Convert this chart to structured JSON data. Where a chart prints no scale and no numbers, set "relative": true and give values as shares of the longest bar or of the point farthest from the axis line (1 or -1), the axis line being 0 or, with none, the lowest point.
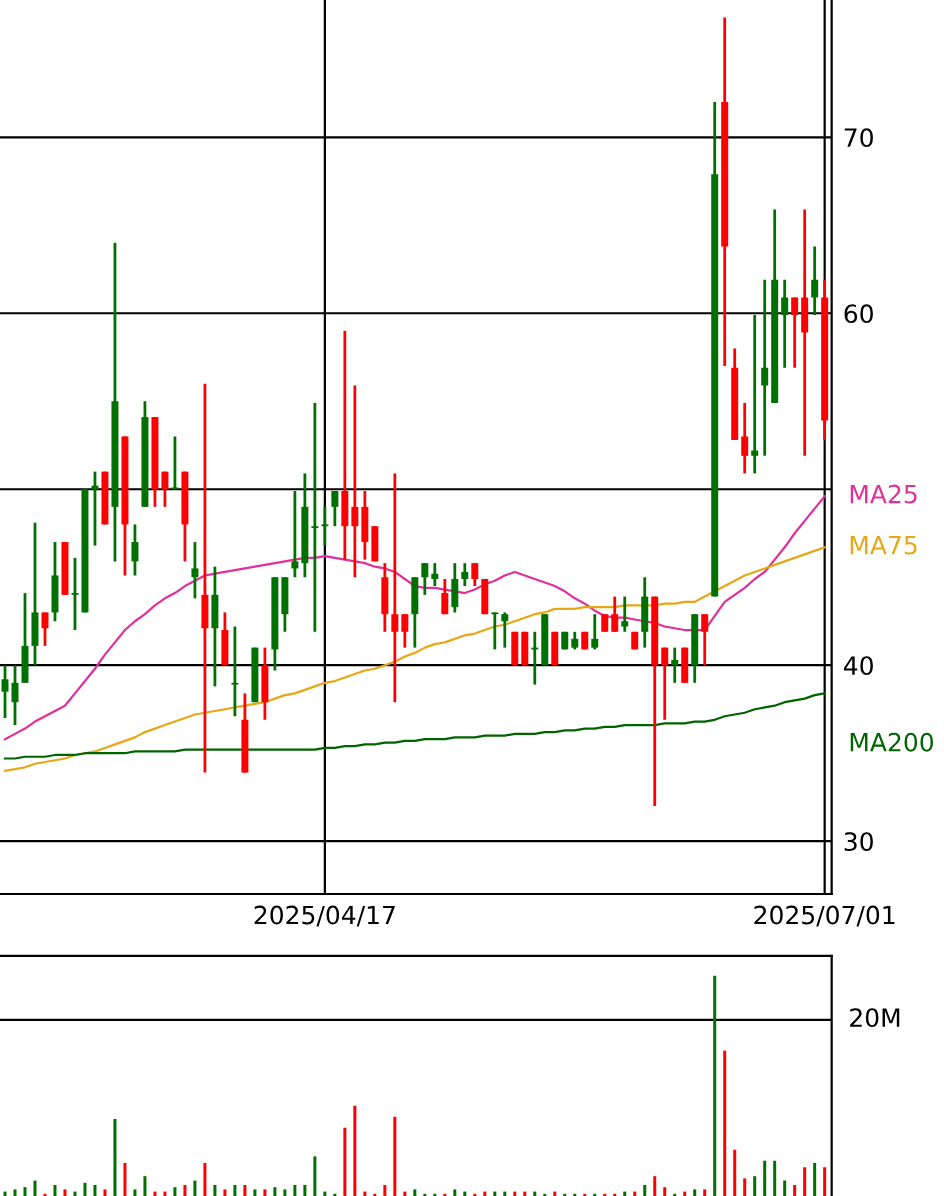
{
  "chart_data": [
    {
      "type": "candlestick",
      "categories": [
        null,
        null,
        null,
        null,
        null,
        null,
        null,
        null,
        null,
        null,
        null,
        null,
        null,
        null,
        null,
        null,
        null,
        null,
        null,
        null,
        null,
        null,
        null,
        null,
        null,
        null,
        null,
        null,
        null,
        null,
        null,
        null,
        "2025/04/17",
        null,
        null,
        null,
        null,
        null,
        null,
        null,
        null,
        null,
        null,
        null,
        null,
        null,
        null,
        null,
        null,
        null,
        null,
        null,
        null,
        null,
        null,
        null,
        null,
        null,
        null,
        null,
        null,
        null,
        null,
        null,
        null,
        null,
        null,
        null,
        null,
        null,
        null,
        null,
        null,
        null,
        null,
        null,
        null,
        null,
        null,
        null,
        null,
        null,
        "2025/07/01"
      ],
      "ohlc": [
        [
          38.5,
          40,
          37,
          39.2
        ],
        [
          37.9,
          40,
          36.6,
          39.0
        ],
        [
          39.0,
          44.1,
          39.0,
          41.1
        ],
        [
          41.1,
          48.1,
          40.0,
          43.0
        ],
        [
          43.0,
          43.0,
          41.1,
          42.1
        ],
        [
          43.0,
          47.0,
          42.5,
          45.1
        ],
        [
          47.0,
          47.0,
          44.0,
          44.0
        ],
        [
          44.0,
          46.1,
          42.0,
          44.1
        ],
        [
          43.0,
          50.0,
          43.0,
          50.0
        ],
        [
          50.0,
          51.0,
          46.8,
          50.2
        ],
        [
          51.0,
          51.0,
          48.0,
          48.0
        ],
        [
          49.0,
          64.0,
          45.9,
          55.0
        ],
        [
          53.0,
          53.0,
          45.1,
          48.0
        ],
        [
          45.9,
          48.0,
          45.1,
          47.0
        ],
        [
          49.0,
          55.0,
          49.0,
          54.1
        ],
        [
          54.1,
          54.1,
          49.0,
          50.0
        ],
        [
          51.0,
          51.0,
          49.0,
          50.0
        ],
        [
          50.0,
          53.0,
          50.0,
          50.1
        ],
        [
          51.0,
          51.0,
          45.9,
          48.0
        ],
        [
          45.0,
          47.0,
          43.8,
          45.5
        ],
        [
          44.0,
          56.0,
          33.9,
          42.1
        ],
        [
          42.1,
          45.6,
          38.8,
          44.0
        ],
        [
          42.0,
          43.0,
          40.0,
          40.0
        ],
        [
          38.9,
          42.2,
          37.1,
          39.0
        ],
        [
          36.9,
          38.4,
          33.9,
          33.9
        ],
        [
          37.9,
          41.0,
          37.9,
          41.0
        ],
        [
          40.0,
          41.0,
          36.9,
          37.9
        ],
        [
          40.9,
          45.0,
          39.7,
          45.0
        ],
        [
          42.9,
          45.0,
          41.9,
          45.0
        ],
        [
          45.5,
          49.9,
          45.0,
          45.9
        ],
        [
          45.8,
          50.9,
          45.0,
          49.0
        ],
        [
          47.8,
          54.9,
          41.9,
          47.9
        ],
        [
          47.9,
          49.0,
          46.8,
          48.0
        ],
        [
          49.0,
          49.9,
          47.9,
          49.9
        ],
        [
          49.9,
          59.0,
          46.0,
          47.9
        ],
        [
          49.0,
          55.9,
          45.0,
          47.9
        ],
        [
          49.0,
          49.9,
          46.0,
          47.0
        ],
        [
          47.9,
          47.9,
          45.9,
          45.9
        ],
        [
          45.0,
          45.8,
          41.9,
          42.9
        ],
        [
          42.9,
          50.9,
          37.9,
          41.9
        ],
        [
          42.9,
          42.9,
          41.0,
          41.9
        ],
        [
          42.9,
          45.0,
          41.0,
          45.0
        ],
        [
          45.0,
          45.8,
          44.0,
          45.8
        ],
        [
          44.9,
          45.8,
          44.5,
          45.2
        ],
        [
          44.1,
          44.9,
          42.9,
          42.9
        ],
        [
          43.3,
          45.8,
          43.0,
          44.9
        ],
        [
          44.9,
          45.8,
          44.5,
          45.3
        ],
        [
          45.8,
          45.8,
          44.5,
          44.9
        ],
        [
          44.9,
          44.9,
          42.9,
          42.9
        ],
        [
          42.9,
          43.0,
          40.9,
          43.0
        ],
        [
          42.5,
          43.0,
          41.0,
          42.9
        ],
        [
          41.9,
          41.9,
          40.0,
          40.0
        ],
        [
          41.9,
          41.9,
          40.0,
          40.0
        ],
        [
          40.9,
          41.9,
          38.9,
          41.0
        ],
        [
          40.0,
          42.9,
          40.0,
          42.9
        ],
        [
          41.9,
          41.9,
          40.0,
          40.0
        ],
        [
          40.9,
          41.9,
          40.9,
          41.9
        ],
        [
          41.0,
          41.9,
          40.9,
          41.5
        ],
        [
          41.9,
          41.9,
          40.9,
          40.9
        ],
        [
          41.0,
          42.9,
          40.9,
          41.5
        ],
        [
          42.9,
          42.9,
          41.9,
          41.9
        ],
        [
          42.9,
          43.9,
          41.9,
          41.9
        ],
        [
          42.2,
          43.9,
          41.9,
          42.5
        ],
        [
          41.9,
          41.9,
          40.9,
          40.9
        ],
        [
          41.9,
          45.0,
          41.0,
          43.9
        ],
        [
          43.9,
          43.9,
          32.0,
          40.0
        ],
        [
          41.0,
          41.0,
          36.9,
          40.0
        ],
        [
          40.0,
          41.0,
          39.0,
          40.3
        ],
        [
          41.0,
          41.0,
          39.0,
          39.0
        ],
        [
          40.0,
          42.9,
          39.0,
          42.9
        ],
        [
          42.9,
          42.9,
          40.0,
          41.9
        ],
        [
          43.9,
          72.0,
          43.9,
          67.9
        ],
        [
          72.0,
          76.8,
          57.0,
          63.8
        ],
        [
          56.9,
          58.0,
          52.8,
          52.8
        ],
        [
          53.0,
          54.9,
          50.9,
          51.9
        ],
        [
          51.9,
          59.9,
          50.9,
          52.2
        ],
        [
          55.9,
          61.9,
          51.9,
          56.9
        ],
        [
          54.9,
          65.9,
          54.9,
          61.9
        ],
        [
          59.9,
          61.9,
          56.9,
          60.9
        ],
        [
          60.9,
          60.9,
          56.9,
          59.9
        ],
        [
          60.9,
          65.9,
          51.9,
          58.9
        ],
        [
          60.9,
          63.8,
          59.9,
          61.9
        ],
        [
          60.9,
          61.9,
          52.8,
          53.9
        ]
      ],
      "colors": [
        "#007000",
        "#007000",
        "#007000",
        "#007000",
        "#ff0000",
        "#007000",
        "#ff0000",
        "#007000",
        "#007000",
        "#007000",
        "#ff0000",
        "#007000",
        "#ff0000",
        "#007000",
        "#007000",
        "#ff0000",
        "#ff0000",
        "#007000",
        "#ff0000",
        "#007000",
        "#ff0000",
        "#007000",
        "#ff0000",
        "#007000",
        "#ff0000",
        "#007000",
        "#ff0000",
        "#007000",
        "#007000",
        "#007000",
        "#007000",
        "#007000",
        "#007000",
        "#007000",
        "#ff0000",
        "#ff0000",
        "#ff0000",
        "#ff0000",
        "#ff0000",
        "#ff0000",
        "#ff0000",
        "#007000",
        "#007000",
        "#007000",
        "#ff0000",
        "#007000",
        "#007000",
        "#ff0000",
        "#ff0000",
        "#007000",
        "#007000",
        "#ff0000",
        "#ff0000",
        "#007000",
        "#007000",
        "#ff0000",
        "#007000",
        "#007000",
        "#ff0000",
        "#007000",
        "#ff0000",
        "#ff0000",
        "#007000",
        "#ff0000",
        "#007000",
        "#ff0000",
        "#ff0000",
        "#007000",
        "#ff0000",
        "#007000",
        "#ff0000",
        "#007000",
        "#ff0000",
        "#ff0000",
        "#ff0000",
        "#007000",
        "#007000",
        "#007000",
        "#007000",
        "#ff0000",
        "#ff0000",
        "#007000",
        "#ff0000"
      ],
      "series": [
        {
          "type": "line",
          "name": "MA25",
          "color": "#e0309a",
          "values": [
            35.8,
            36.1,
            36.4,
            36.8,
            37.1,
            37.4,
            37.7,
            38.4,
            39.1,
            39.8,
            40.6,
            41.3,
            42.0,
            42.5,
            42.9,
            43.4,
            43.8,
            44.1,
            44.5,
            44.8,
            45.1,
            45.2,
            45.3,
            45.4,
            45.5,
            45.6,
            45.7,
            45.8,
            45.9,
            46.0,
            46.1,
            46.1,
            46.2,
            46.1,
            46.0,
            45.9,
            45.8,
            45.6,
            45.5,
            45.3,
            44.9,
            44.5,
            44.4,
            44.4,
            44.3,
            44.2,
            44.1,
            44.3,
            44.6,
            44.8,
            45.1,
            45.3,
            45.1,
            44.9,
            44.7,
            44.5,
            44.2,
            43.8,
            43.5,
            43.1,
            42.8,
            42.7,
            42.7,
            42.6,
            42.5,
            42.4,
            42.2,
            42.1,
            42.0,
            42.0,
            42.0,
            42.8,
            43.6,
            44.0,
            44.4,
            44.9,
            45.3,
            46.0,
            46.7,
            47.5,
            48.2,
            48.9,
            49.6
          ]
        },
        {
          "type": "line",
          "name": "MA75",
          "color": "#e6a817",
          "values": [
            34.0,
            34.1,
            34.2,
            34.4,
            34.5,
            34.6,
            34.7,
            34.9,
            35.0,
            35.1,
            35.3,
            35.5,
            35.7,
            35.9,
            36.2,
            36.4,
            36.6,
            36.8,
            37.0,
            37.2,
            37.3,
            37.4,
            37.5,
            37.6,
            37.7,
            37.8,
            37.9,
            38.1,
            38.3,
            38.4,
            38.6,
            38.8,
            39.0,
            39.1,
            39.3,
            39.5,
            39.7,
            39.8,
            40.0,
            40.2,
            40.5,
            40.7,
            41.0,
            41.2,
            41.3,
            41.5,
            41.7,
            41.8,
            42.0,
            42.2,
            42.3,
            42.5,
            42.7,
            42.9,
            43.0,
            43.2,
            43.2,
            43.2,
            43.3,
            43.3,
            43.3,
            43.3,
            43.4,
            43.4,
            43.4,
            43.4,
            43.5,
            43.5,
            43.6,
            43.6,
            43.9,
            44.2,
            44.5,
            44.8,
            45.1,
            45.3,
            45.5,
            45.7,
            45.9,
            46.1,
            46.3,
            46.5,
            46.7
          ]
        },
        {
          "type": "line",
          "name": "MA200",
          "color": "#006400",
          "values": [
            34.7,
            34.7,
            34.8,
            34.8,
            34.8,
            34.9,
            34.9,
            34.9,
            35.0,
            35.0,
            35.0,
            35.0,
            35.0,
            35.1,
            35.1,
            35.1,
            35.1,
            35.1,
            35.2,
            35.2,
            35.2,
            35.2,
            35.2,
            35.2,
            35.2,
            35.2,
            35.2,
            35.2,
            35.2,
            35.2,
            35.2,
            35.2,
            35.3,
            35.3,
            35.4,
            35.4,
            35.5,
            35.5,
            35.6,
            35.6,
            35.7,
            35.7,
            35.8,
            35.8,
            35.8,
            35.9,
            35.9,
            35.9,
            36.0,
            36.0,
            36.0,
            36.1,
            36.1,
            36.1,
            36.2,
            36.2,
            36.3,
            36.3,
            36.4,
            36.4,
            36.5,
            36.5,
            36.6,
            36.6,
            36.6,
            36.6,
            36.7,
            36.7,
            36.7,
            36.8,
            36.8,
            36.9,
            37.1,
            37.2,
            37.3,
            37.5,
            37.6,
            37.7,
            37.9,
            38.0,
            38.1,
            38.3,
            38.4
          ]
        }
      ],
      "ylim": [
        27.0,
        77.8
      ],
      "yticks": [
        30,
        40,
        {
          "value": 50,
          "label": null
        },
        60,
        70
      ],
      "grid": true
    },
    {
      "type": "bar",
      "relative": true,
      "categories": [
        null,
        null,
        null,
        null,
        null,
        null,
        null,
        null,
        null,
        null,
        null,
        null,
        null,
        null,
        null,
        null,
        null,
        null,
        null,
        null,
        null,
        null,
        null,
        null,
        null,
        null,
        null,
        null,
        null,
        null,
        null,
        null,
        null,
        null,
        null,
        null,
        null,
        null,
        null,
        null,
        null,
        null,
        null,
        null,
        null,
        null,
        null,
        null,
        null,
        null,
        null,
        null,
        null,
        null,
        null,
        null,
        null,
        null,
        null,
        null,
        null,
        null,
        null,
        null,
        null,
        null,
        null,
        null,
        null,
        null,
        null,
        null,
        null,
        null,
        null,
        null,
        null,
        null,
        null,
        null,
        null,
        null,
        null
      ],
      "values": [
        0.02,
        0.03,
        0.04,
        0.07,
        0.01,
        0.05,
        0.03,
        0.02,
        0.06,
        0.05,
        0.03,
        0.35,
        0.15,
        0.03,
        0.09,
        0.02,
        0.02,
        0.04,
        0.05,
        0.07,
        0.15,
        0.05,
        0.03,
        0.05,
        0.05,
        0.03,
        0.03,
        0.04,
        0.03,
        0.05,
        0.05,
        0.18,
        0.02,
        0.01,
        0.31,
        0.41,
        0.02,
        0.01,
        0.05,
        0.36,
        0.02,
        0.03,
        0.01,
        0.01,
        0.01,
        0.03,
        0.02,
        0.01,
        0.02,
        0.02,
        0.02,
        0.02,
        0.02,
        0.02,
        0.01,
        0.02,
        0.01,
        0.01,
        0.01,
        0.01,
        0.01,
        0.01,
        0.02,
        0.02,
        0.05,
        0.09,
        0.04,
        0.01,
        0.02,
        0.03,
        0.03,
        1,
        0.66,
        0.21,
        0.08,
        0.09,
        0.16,
        0.16,
        0.07,
        0.05,
        0.13,
        0.15,
        0.13
      ],
      "colors": [
        "#007000",
        "#007000",
        "#007000",
        "#007000",
        "#ff0000",
        "#007000",
        "#ff0000",
        "#007000",
        "#007000",
        "#007000",
        "#ff0000",
        "#007000",
        "#ff0000",
        "#007000",
        "#007000",
        "#ff0000",
        "#ff0000",
        "#007000",
        "#ff0000",
        "#007000",
        "#ff0000",
        "#007000",
        "#ff0000",
        "#007000",
        "#ff0000",
        "#007000",
        "#ff0000",
        "#007000",
        "#007000",
        "#007000",
        "#007000",
        "#007000",
        "#007000",
        "#007000",
        "#ff0000",
        "#ff0000",
        "#ff0000",
        "#ff0000",
        "#ff0000",
        "#ff0000",
        "#ff0000",
        "#007000",
        "#007000",
        "#007000",
        "#ff0000",
        "#007000",
        "#007000",
        "#ff0000",
        "#ff0000",
        "#007000",
        "#007000",
        "#ff0000",
        "#ff0000",
        "#007000",
        "#007000",
        "#ff0000",
        "#007000",
        "#007000",
        "#ff0000",
        "#007000",
        "#ff0000",
        "#ff0000",
        "#007000",
        "#ff0000",
        "#007000",
        "#ff0000",
        "#ff0000",
        "#007000",
        "#ff0000",
        "#007000",
        "#ff0000",
        "#007000",
        "#ff0000",
        "#ff0000",
        "#ff0000",
        "#007000",
        "#007000",
        "#007000",
        "#007000",
        "#ff0000",
        "#ff0000",
        "#007000",
        "#ff0000"
      ],
      "ref_lines": [
        {
          "axis": "y",
          "value": 0.8,
          "label": "20M"
        }
      ]
    }
  ]
}
